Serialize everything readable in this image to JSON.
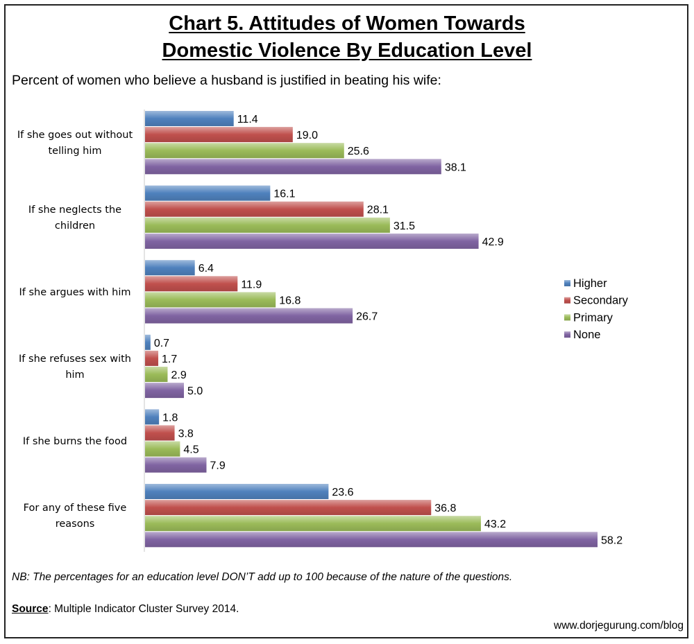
{
  "header": {
    "title_line1": "Chart 5. Attitudes of Women Towards",
    "title_line2": "Domestic Violence By Education Level",
    "subtitle": "Percent of women who believe a husband is justified in beating his wife:"
  },
  "footer": {
    "note": "NB: The percentages for an education level DON’T add up to 100 because of the nature of the questions.",
    "source_label": "Source",
    "source_text": ": Multiple Indicator Cluster Survey 2014.",
    "website": "www.dorjegurung.com/blog"
  },
  "chart_data": {
    "type": "bar",
    "orientation": "horizontal",
    "categories": [
      [
        "If she goes out without",
        "telling him"
      ],
      [
        "If she neglects the",
        "children"
      ],
      [
        "If she argues with him"
      ],
      [
        "If she refuses sex with",
        "him"
      ],
      [
        "If she burns the food"
      ],
      [
        "For any of these five",
        "reasons"
      ]
    ],
    "series": [
      {
        "name": "Higher",
        "color": "#4F81BD",
        "values": [
          11.4,
          16.1,
          6.4,
          0.7,
          1.8,
          23.6
        ]
      },
      {
        "name": "Secondary",
        "color": "#C0504D",
        "values": [
          19.0,
          28.1,
          11.9,
          1.7,
          3.8,
          36.8
        ]
      },
      {
        "name": "Primary",
        "color": "#9BBB59",
        "values": [
          25.6,
          31.5,
          16.8,
          2.9,
          4.5,
          43.2
        ]
      },
      {
        "name": "None",
        "color": "#8064A2",
        "values": [
          38.1,
          42.9,
          26.7,
          5.0,
          7.9,
          58.2
        ]
      }
    ],
    "xlim": [
      0,
      58.2
    ],
    "data_labels": true,
    "value_format": "0.0",
    "grid": false,
    "legend_position": "right"
  }
}
